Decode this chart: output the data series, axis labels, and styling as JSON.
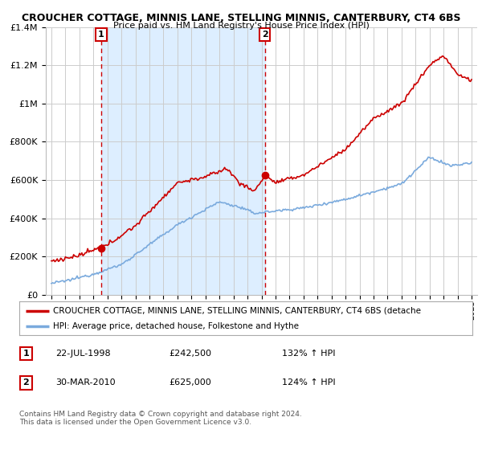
{
  "title_line1": "CROUCHER COTTAGE, MINNIS LANE, STELLING MINNIS, CANTERBURY, CT4 6BS",
  "title_line2": "Price paid vs. HM Land Registry's House Price Index (HPI)",
  "ylim": [
    0,
    1400000
  ],
  "yticks": [
    0,
    200000,
    400000,
    600000,
    800000,
    1000000,
    1200000,
    1400000
  ],
  "ytick_labels": [
    "£0",
    "£200K",
    "£400K",
    "£600K",
    "£800K",
    "£1M",
    "£1.2M",
    "£1.4M"
  ],
  "sale1_date_num": 1998.55,
  "sale1_price": 242500,
  "sale1_label": "1",
  "sale2_date_num": 2010.24,
  "sale2_price": 625000,
  "sale2_label": "2",
  "hpi_color": "#7aaadd",
  "price_color": "#cc0000",
  "vline_color": "#cc0000",
  "shade_color": "#ddeeff",
  "grid_color": "#cccccc",
  "legend_label_price": "CROUCHER COTTAGE, MINNIS LANE, STELLING MINNIS, CANTERBURY, CT4 6BS (detache",
  "legend_label_hpi": "HPI: Average price, detached house, Folkestone and Hythe",
  "annotation1_date": "22-JUL-1998",
  "annotation1_price": "£242,500",
  "annotation1_hpi": "132% ↑ HPI",
  "annotation2_date": "30-MAR-2010",
  "annotation2_price": "£625,000",
  "annotation2_hpi": "124% ↑ HPI",
  "footer": "Contains HM Land Registry data © Crown copyright and database right 2024.\nThis data is licensed under the Open Government Licence v3.0.",
  "background_color": "#ffffff"
}
